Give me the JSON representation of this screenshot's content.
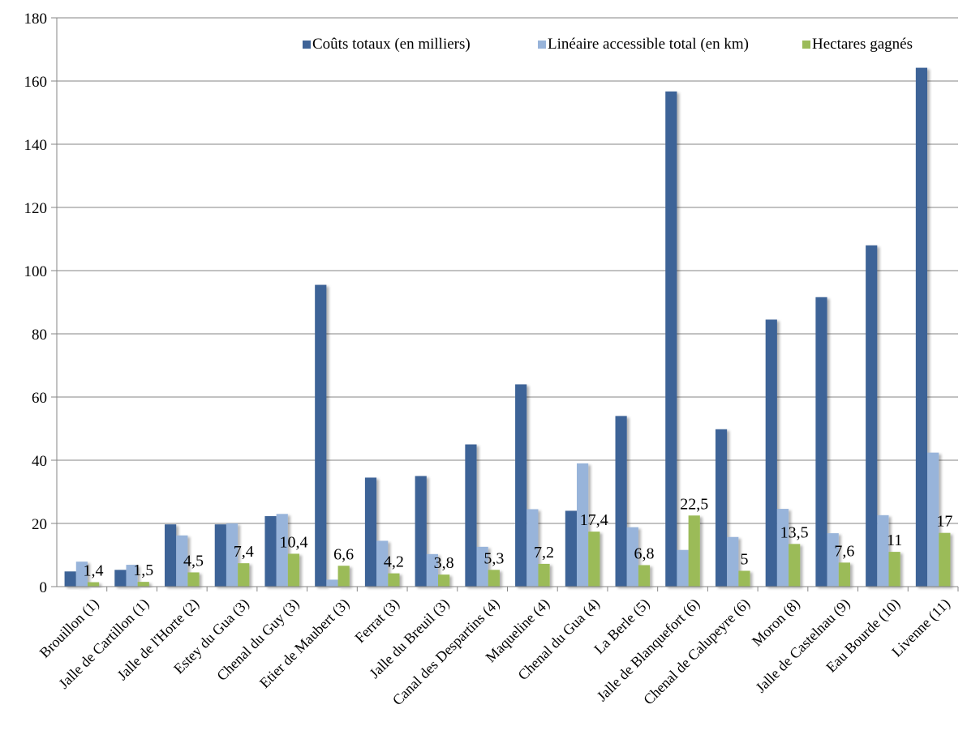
{
  "chart_data": {
    "type": "bar",
    "categories": [
      "Brouillon (1)",
      "Jalle de Cartillon (1)",
      "Jalle de l'Horte (2)",
      "Estey du Gua (3)",
      "Chenal du Guy (3)",
      "Etier de Maubert (3)",
      "Ferrat (3)",
      "Jalle du Breuil (3)",
      "Canal des Despartins (4)",
      "Maqueline (4)",
      "Chenal du Gua (4)",
      "La Berle (5)",
      "Jalle de Blanquefort (6)",
      "Chenal de Calupeyre (6)",
      "Moron (8)",
      "Jalle de Castelnau (9)",
      "Eau Bourde (10)",
      "Livenne (11)"
    ],
    "series": [
      {
        "name": "Coûts totaux (en milliers)",
        "color": "#3E6397",
        "values": [
          4.8,
          5.3,
          19.7,
          19.7,
          22.3,
          95.5,
          34.5,
          35.0,
          45.0,
          64.0,
          24.0,
          54.0,
          156.7,
          49.8,
          84.5,
          91.6,
          108.0,
          164.2
        ]
      },
      {
        "name": "Linéaire accessible total (en km)",
        "color": "#98B4DA",
        "values": [
          7.9,
          6.9,
          16.2,
          20.0,
          23.0,
          2.2,
          14.5,
          10.3,
          12.6,
          24.5,
          39.0,
          18.8,
          11.6,
          15.7,
          24.6,
          16.9,
          22.6,
          42.4
        ]
      },
      {
        "name": "Hectares gagnés",
        "color": "#9BBB59",
        "values": [
          1.4,
          1.5,
          4.5,
          7.4,
          10.4,
          6.6,
          4.2,
          3.8,
          5.3,
          7.2,
          17.4,
          6.8,
          22.5,
          5,
          13.5,
          7.6,
          11,
          17
        ],
        "labels": [
          "1,4",
          "1,5",
          "4,5",
          "7,4",
          "10,4",
          "6,6",
          "4,2",
          "3,8",
          "5,3",
          "7,2",
          "17,4",
          "6,8",
          "22,5",
          "5",
          "13,5",
          "7,6",
          "11",
          "17"
        ]
      }
    ],
    "ylim": [
      0,
      180
    ],
    "yticks": [
      "0",
      "20",
      "40",
      "60",
      "80",
      "100",
      "120",
      "140",
      "160",
      "180"
    ],
    "title": "",
    "xlabel": "",
    "ylabel": "",
    "grid": true,
    "legend_position": "top-right"
  }
}
